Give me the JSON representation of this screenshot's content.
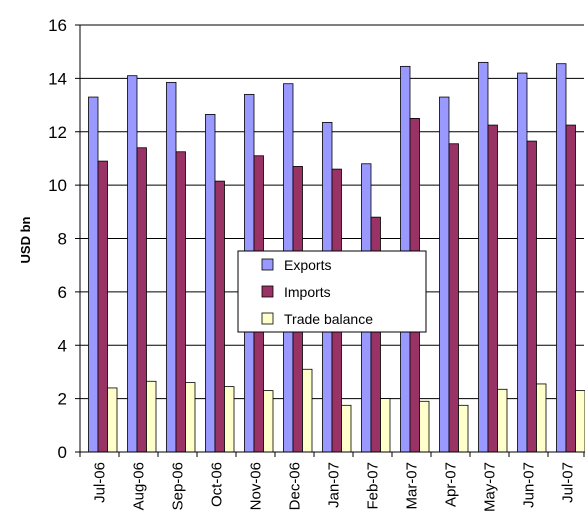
{
  "chart_data": {
    "type": "bar",
    "title": "",
    "xlabel": "",
    "ylabel": "USD bn",
    "ylim": [
      0,
      16
    ],
    "yticks": [
      0,
      2,
      4,
      6,
      8,
      10,
      12,
      14,
      16
    ],
    "grid": true,
    "legend_position": "center",
    "categories": [
      "Jul-06",
      "Aug-06",
      "Sep-06",
      "Oct-06",
      "Nov-06",
      "Dec-06",
      "Jan-07",
      "Feb-07",
      "Mar-07",
      "Apr-07",
      "May-07",
      "Jun-07",
      "Jul-07"
    ],
    "series": [
      {
        "name": "Exports",
        "color": "#9999FF",
        "values": [
          13.3,
          14.1,
          13.85,
          12.65,
          13.4,
          13.8,
          12.35,
          10.8,
          14.45,
          13.3,
          14.6,
          14.2,
          14.55
        ]
      },
      {
        "name": "Imports",
        "color": "#993366",
        "values": [
          10.9,
          11.4,
          11.25,
          10.15,
          11.1,
          10.7,
          10.6,
          8.8,
          12.5,
          11.55,
          12.25,
          11.65,
          12.25
        ]
      },
      {
        "name": "Trade balance",
        "color": "#FFFFCC",
        "values": [
          2.4,
          2.65,
          2.6,
          2.45,
          2.3,
          3.1,
          1.75,
          2.0,
          1.9,
          1.75,
          2.35,
          2.55,
          2.3
        ]
      }
    ]
  }
}
